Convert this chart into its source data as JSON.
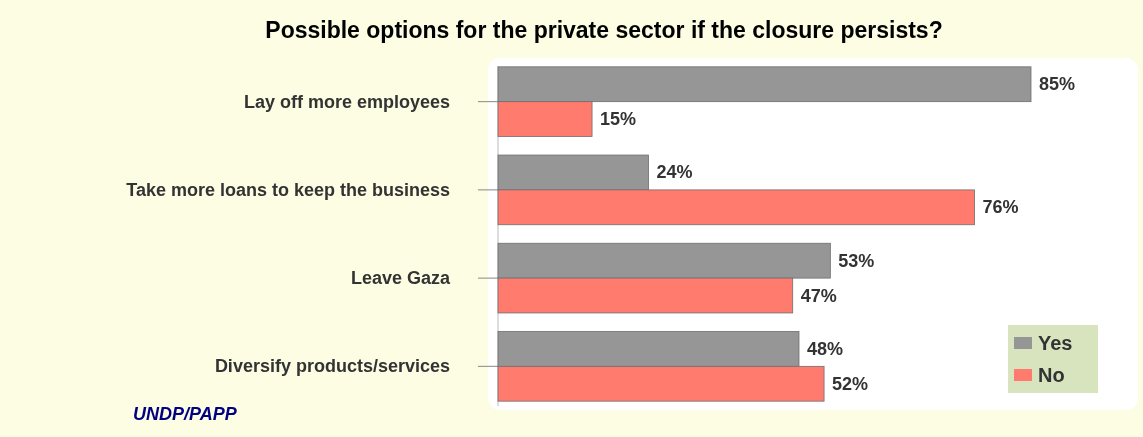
{
  "chart_data": {
    "type": "bar",
    "orientation": "horizontal",
    "title": "Possible options for the private sector if the closure persists?",
    "categories": [
      "Lay off more employees",
      "Take more loans to keep the business",
      "Leave Gaza",
      "Diversify products/services"
    ],
    "series": [
      {
        "name": "Yes",
        "color": "#969696",
        "values": [
          85,
          24,
          53,
          48
        ],
        "value_labels": [
          "85%",
          "24%",
          "53%",
          "48%"
        ]
      },
      {
        "name": "No",
        "color": "#ff7b6e",
        "values": [
          15,
          76,
          47,
          52
        ],
        "value_labels": [
          "15%",
          "76%",
          "47%",
          "52%"
        ]
      }
    ],
    "legend": "bottom right",
    "annotations": [
      "UNDP/PAPP"
    ]
  }
}
